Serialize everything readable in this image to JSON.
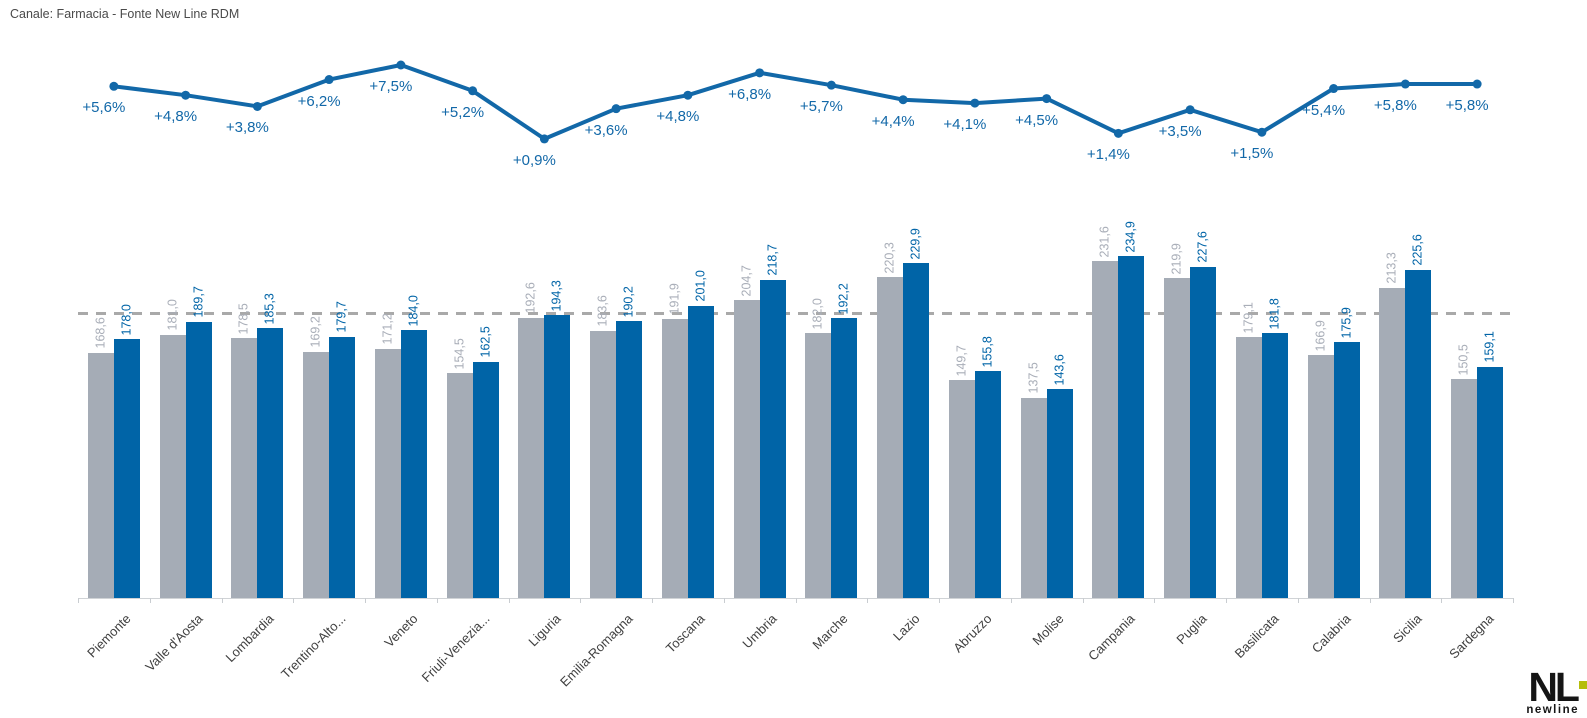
{
  "title": "Canale: Farmacia - Fonte New Line RDM",
  "colors": {
    "bar_gray": "#a5acb6",
    "bar_blue": "#0064a7",
    "line_blue": "#1268a8",
    "value_label_gray": "#a9aeb8",
    "value_label_blue": "#0064a7",
    "pct_label_blue": "#1268a8",
    "reference_dash_gray": "#a9a9a9",
    "axis_gray": "#d0d3d6",
    "category_text": "#404040",
    "logo_green": "#b5bd0b"
  },
  "chart_data": {
    "type": "bar",
    "title": "Canale: Farmacia - Fonte New Line RDM",
    "xlabel": "",
    "ylabel": "",
    "grid": false,
    "legend": "none",
    "ylim": [
      0,
      267
    ],
    "categories": [
      "Piemonte",
      "Valle d'Aosta",
      "Lombardia",
      "Trentino-Alto...",
      "Veneto",
      "Friuli-Venezia...",
      "Liguria",
      "Emilia-Romagna",
      "Toscana",
      "Umbria",
      "Marche",
      "Lazio",
      "Abruzzo",
      "Molise",
      "Campania",
      "Puglia",
      "Basilicata",
      "Calabria",
      "Sicilia",
      "Sardegna"
    ],
    "series": [
      {
        "name": "gray_bars",
        "values": [
          168.6,
          181.0,
          178.5,
          169.2,
          171.2,
          154.5,
          192.6,
          183.6,
          191.9,
          204.7,
          182.0,
          220.3,
          149.7,
          137.5,
          231.6,
          219.9,
          179.1,
          166.9,
          213.3,
          150.5
        ],
        "labels": [
          "168,6",
          "181,0",
          "178,5",
          "169,2",
          "171,2",
          "154,5",
          "192,6",
          "183,6",
          "191,9",
          "204,7",
          "182,0",
          "220,3",
          "149,7",
          "137,5",
          "231,6",
          "219,9",
          "179,1",
          "166,9",
          "213,3",
          "150,5"
        ]
      },
      {
        "name": "blue_bars",
        "values": [
          178.0,
          189.7,
          185.3,
          179.7,
          184.0,
          162.5,
          194.3,
          190.2,
          201.0,
          218.7,
          192.2,
          229.9,
          155.8,
          143.6,
          234.9,
          227.6,
          181.8,
          175.9,
          225.6,
          159.1
        ],
        "labels": [
          "178,0",
          "189,7",
          "185,3",
          "179,7",
          "184,0",
          "162,5",
          "194,3",
          "190,2",
          "201,0",
          "218,7",
          "192,2",
          "229,9",
          "155,8",
          "143,6",
          "234,9",
          "227,6",
          "181,8",
          "175,9",
          "225,6",
          "159,1"
        ]
      }
    ],
    "growth_line": {
      "type": "line",
      "values": [
        5.6,
        4.8,
        3.8,
        6.2,
        7.5,
        5.2,
        0.9,
        3.6,
        4.8,
        6.8,
        5.7,
        4.4,
        4.1,
        4.5,
        1.4,
        3.5,
        1.5,
        5.4,
        5.8,
        5.8
      ],
      "labels": [
        "+5,6%",
        "+4,8%",
        "+3,8%",
        "+6,2%",
        "+7,5%",
        "+5,2%",
        "+0,9%",
        "+3,6%",
        "+4,8%",
        "+6,8%",
        "+5,7%",
        "+4,4%",
        "+4,1%",
        "+4,5%",
        "+1,4%",
        "+3,5%",
        "+1,5%",
        "+5,4%",
        "+5,8%",
        "+5,8%"
      ]
    },
    "reference_line": {
      "style": "dashed",
      "value": 196.5
    }
  },
  "logo": {
    "monogram": "NL",
    "brand": "newline"
  }
}
